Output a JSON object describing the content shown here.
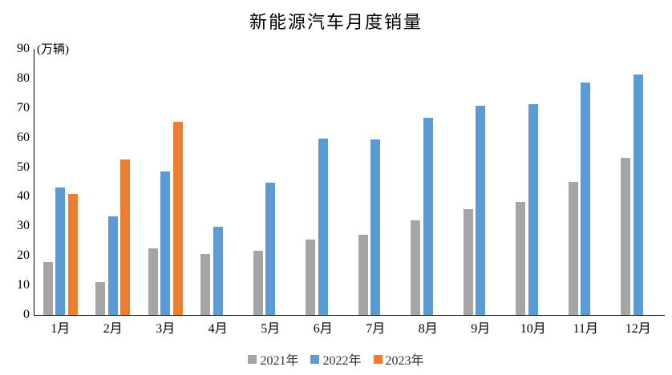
{
  "chart_data": {
    "type": "bar",
    "title": "新能源汽车月度销量",
    "unit_label": "(万辆)",
    "categories": [
      "1月",
      "2月",
      "3月",
      "4月",
      "5月",
      "6月",
      "7月",
      "8月",
      "9月",
      "10月",
      "11月",
      "12月"
    ],
    "series": [
      {
        "name": "2021年",
        "color": "#A5A5A5",
        "values": [
          17.9,
          11.0,
          22.6,
          20.6,
          21.7,
          25.6,
          27.1,
          32.1,
          35.7,
          38.3,
          45.0,
          53.1
        ]
      },
      {
        "name": "2022年",
        "color": "#5B9BD5",
        "values": [
          43.1,
          33.4,
          48.4,
          29.9,
          44.7,
          59.6,
          59.3,
          66.6,
          70.8,
          71.4,
          78.6,
          81.4
        ]
      },
      {
        "name": "2023年",
        "color": "#ED7D31",
        "values": [
          40.8,
          52.5,
          65.3
        ]
      }
    ],
    "ylim": [
      0,
      90
    ],
    "ytick_step": 10,
    "ytick_labels": [
      "0",
      "10",
      "20",
      "30",
      "40",
      "50",
      "60",
      "70",
      "80",
      "90"
    ],
    "grid": false,
    "legend_position": "bottom",
    "axis_color": "#000000"
  }
}
